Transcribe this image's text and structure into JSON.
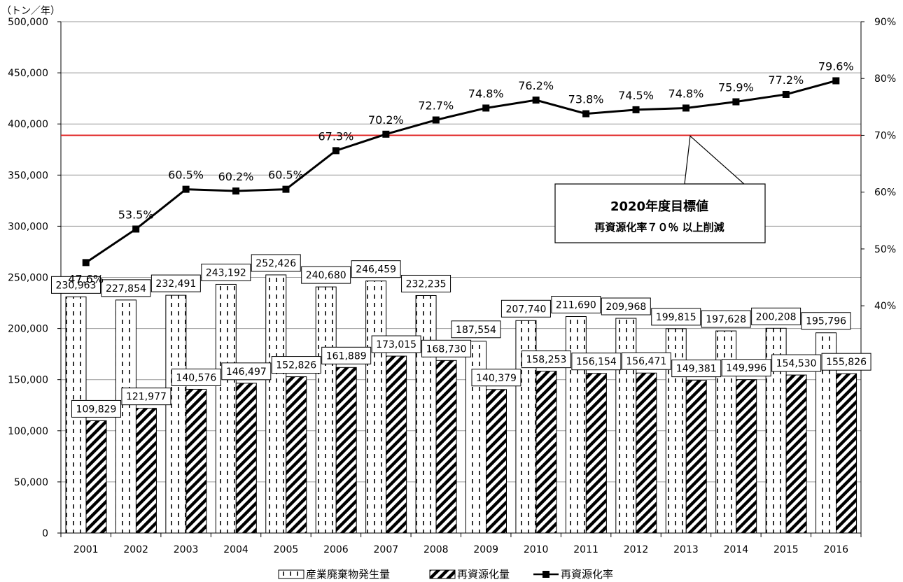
{
  "chart_data": {
    "type": "bar",
    "y_unit_label": "（トン／年）",
    "categories": [
      "2001",
      "2002",
      "2003",
      "2004",
      "2005",
      "2006",
      "2007",
      "2008",
      "2009",
      "2010",
      "2011",
      "2012",
      "2013",
      "2014",
      "2015",
      "2016"
    ],
    "ylim": [
      0,
      500000
    ],
    "yticks": [
      "0",
      "50,000",
      "100,000",
      "150,000",
      "200,000",
      "250,000",
      "300,000",
      "350,000",
      "400,000",
      "450,000",
      "500,000"
    ],
    "y2lim": [
      0,
      90
    ],
    "y2ticks": [
      "40%",
      "50%",
      "60%",
      "70%",
      "80%",
      "90%"
    ],
    "series": [
      {
        "name": "産業廃棄物発生量",
        "type": "bar",
        "axis": "left",
        "pattern": "dashed-vertical",
        "values": [
          230963,
          227854,
          232491,
          243192,
          252426,
          240680,
          246459,
          232235,
          187554,
          207740,
          211690,
          209968,
          199815,
          197628,
          200208,
          195796
        ],
        "labels": [
          "230,963",
          "227,854",
          "232,491",
          "243,192",
          "252,426",
          "240,680",
          "246,459",
          "232,235",
          "187,554",
          "207,740",
          "211,690",
          "209,968",
          "199,815",
          "197,628",
          "200,208",
          "195,796"
        ]
      },
      {
        "name": "再資源化量",
        "type": "bar",
        "axis": "left",
        "pattern": "diagonal-stripes",
        "values": [
          109829,
          121977,
          140576,
          146497,
          152826,
          161889,
          173015,
          168730,
          140379,
          158253,
          156154,
          156471,
          149381,
          149996,
          154530,
          155826
        ],
        "labels": [
          "109,829",
          "121,977",
          "140,576",
          "146,497",
          "152,826",
          "161,889",
          "173,015",
          "168,730",
          "140,379",
          "158,253",
          "156,154",
          "156,471",
          "149,381",
          "149,996",
          "154,530",
          "155,826"
        ]
      },
      {
        "name": "再資源化率",
        "type": "line",
        "axis": "right",
        "values": [
          47.6,
          53.5,
          60.5,
          60.2,
          60.5,
          67.3,
          70.2,
          72.7,
          74.8,
          76.2,
          73.8,
          74.5,
          74.8,
          75.9,
          77.2,
          79.6
        ],
        "labels": [
          "47.6%",
          "53.5%",
          "60.5%",
          "60.2%",
          "60.5%",
          "67.3%",
          "70.2%",
          "72.7%",
          "74.8%",
          "76.2%",
          "73.8%",
          "74.5%",
          "74.8%",
          "75.9%",
          "77.2%",
          "79.6%"
        ]
      }
    ],
    "target_line": {
      "value_percent": 70,
      "color": "#e02020"
    },
    "annotation": {
      "title": "2020年度目標値",
      "subtitle": "再資源化率７０％ 以上削減"
    },
    "grid": true,
    "legend_position": "bottom-center"
  }
}
